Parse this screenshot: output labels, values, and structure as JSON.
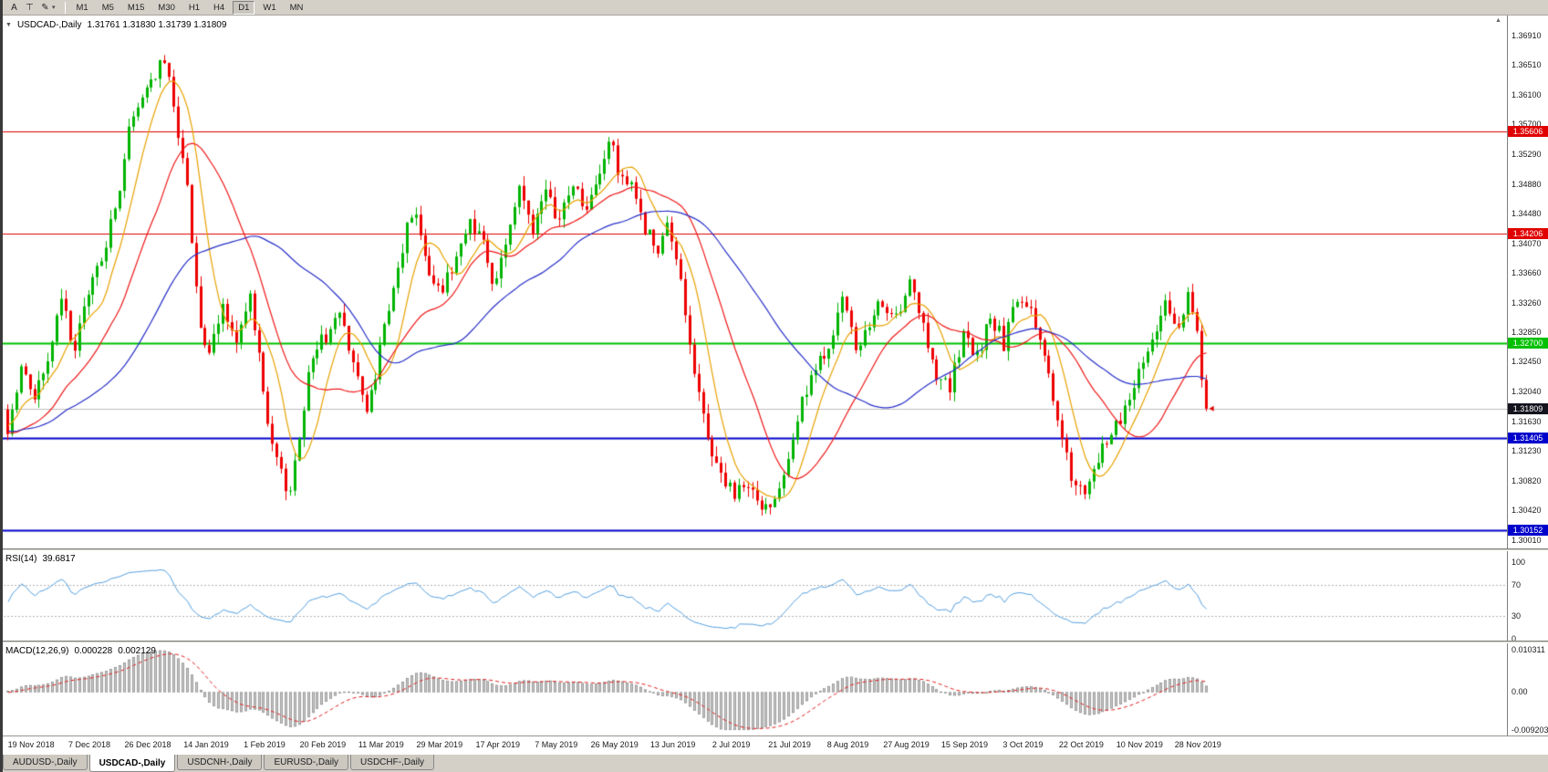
{
  "toolbar": {
    "icons": [
      {
        "name": "annotations",
        "glyph": "A"
      },
      {
        "name": "text-tool",
        "glyph": "⊤"
      },
      {
        "name": "draw-tools",
        "glyph": "✎"
      },
      {
        "name": "draw-tools-caret",
        "glyph": "▾"
      }
    ],
    "timeframes": [
      "M1",
      "M5",
      "M15",
      "M30",
      "H1",
      "H4",
      "D1",
      "W1",
      "MN"
    ],
    "active_timeframe": "D1"
  },
  "chart_header": {
    "collapse_icon": "▼",
    "title": "USDCAD-,Daily",
    "ohlc": "1.31761 1.31830 1.31739 1.31809"
  },
  "scroll_marker": "▲",
  "rsi_panel": {
    "label": "RSI(14)",
    "value": "39.6817",
    "axis_labels": [
      "100",
      "70",
      "30",
      "0"
    ]
  },
  "macd_panel": {
    "label": "MACD(12,26,9)",
    "value_main": "0.000228",
    "value_signal": "0.002129",
    "axis_labels": [
      "0.010311",
      "0.00",
      "-0.009203"
    ]
  },
  "tabs": {
    "items": [
      "AUDUSD-,Daily",
      "USDCAD-,Daily",
      "USDCNH-,Daily",
      "EURUSD-,Daily",
      "USDCHF-,Daily"
    ],
    "active_index": 1
  },
  "colors": {
    "candle_up": "#00b400",
    "candle_down": "#ee0000",
    "ma_fast": "#e8a200",
    "ma_medium": "#f01818",
    "ma_slow": "#2830c8",
    "rsi_line": "#55a0e0",
    "macd_histogram_fill": "#cacaca",
    "macd_histogram_edge": "#8a8a8a",
    "macd_signal": "#e02020",
    "current_price_line": "#c0c0c0",
    "current_price_badge": "#14141e"
  },
  "chart_data": {
    "type": "candlestick",
    "title": "USDCAD-,Daily",
    "ohlc_values": {
      "open": 1.31761,
      "high": 1.3183,
      "low": 1.31739,
      "close": 1.31809
    },
    "price_axis_ticks": [
      "1.36910",
      "1.36510",
      "1.36100",
      "1.35700",
      "1.35290",
      "1.34880",
      "1.34480",
      "1.34070",
      "1.33660",
      "1.33260",
      "1.32850",
      "1.32450",
      "1.32040",
      "1.31630",
      "1.31230",
      "1.30820",
      "1.30420",
      "1.30010"
    ],
    "date_labels": [
      "19 Nov 2018",
      "7 Dec 2018",
      "26 Dec 2018",
      "14 Jan 2019",
      "1 Feb 2019",
      "20 Feb 2019",
      "11 Mar 2019",
      "29 Mar 2019",
      "17 Apr 2019",
      "7 May 2019",
      "26 May 2019",
      "13 Jun 2019",
      "2 Jul 2019",
      "21 Jul 2019",
      "8 Aug 2019",
      "27 Aug 2019",
      "15 Sep 2019",
      "3 Oct 2019",
      "22 Oct 2019",
      "10 Nov 2019",
      "28 Nov 2019"
    ],
    "horizontal_levels": [
      {
        "price": 1.35606,
        "label": "1.35606",
        "color": "#e00000",
        "width": 1
      },
      {
        "price": 1.34206,
        "label": "1.34206",
        "color": "#e00000",
        "width": 1
      },
      {
        "price": 1.327,
        "label": "1.32700",
        "color": "#00c000",
        "width": 2
      },
      {
        "price": 1.31405,
        "label": "1.31405",
        "color": "#0000cc",
        "width": 2
      },
      {
        "price": 1.30152,
        "label": "1.30152",
        "color": "#0000cc",
        "width": 2
      }
    ],
    "current_price": {
      "value": 1.31809,
      "label": "1.31809"
    },
    "candles": {
      "count": 268,
      "close_anchors": [
        [
          0,
          1.315
        ],
        [
          3,
          1.3235
        ],
        [
          6,
          1.32
        ],
        [
          9,
          1.3245
        ],
        [
          12,
          1.333
        ],
        [
          15,
          1.326
        ],
        [
          18,
          1.334
        ],
        [
          21,
          1.339
        ],
        [
          24,
          1.345
        ],
        [
          27,
          1.356
        ],
        [
          30,
          1.361
        ],
        [
          33,
          1.364
        ],
        [
          35,
          1.3655
        ],
        [
          37,
          1.36
        ],
        [
          40,
          1.348
        ],
        [
          43,
          1.329
        ],
        [
          45,
          1.325
        ],
        [
          48,
          1.332
        ],
        [
          51,
          1.327
        ],
        [
          54,
          1.333
        ],
        [
          56,
          1.325
        ],
        [
          58,
          1.315
        ],
        [
          61,
          1.309
        ],
        [
          63,
          1.3065
        ],
        [
          65,
          1.315
        ],
        [
          68,
          1.326
        ],
        [
          71,
          1.328
        ],
        [
          74,
          1.331
        ],
        [
          77,
          1.325
        ],
        [
          80,
          1.317
        ],
        [
          83,
          1.326
        ],
        [
          86,
          1.334
        ],
        [
          89,
          1.343
        ],
        [
          91,
          1.345
        ],
        [
          94,
          1.337
        ],
        [
          97,
          1.334
        ],
        [
          100,
          1.339
        ],
        [
          103,
          1.344
        ],
        [
          106,
          1.341
        ],
        [
          108,
          1.335
        ],
        [
          111,
          1.341
        ],
        [
          114,
          1.348
        ],
        [
          117,
          1.343
        ],
        [
          120,
          1.347
        ],
        [
          123,
          1.344
        ],
        [
          126,
          1.349
        ],
        [
          129,
          1.345
        ],
        [
          132,
          1.35
        ],
        [
          134,
          1.355
        ],
        [
          136,
          1.351
        ],
        [
          139,
          1.348
        ],
        [
          142,
          1.343
        ],
        [
          145,
          1.339
        ],
        [
          147,
          1.343
        ],
        [
          150,
          1.336
        ],
        [
          153,
          1.323
        ],
        [
          156,
          1.314
        ],
        [
          159,
          1.309
        ],
        [
          162,
          1.306
        ],
        [
          165,
          1.308
        ],
        [
          168,
          1.304
        ],
        [
          171,
          1.306
        ],
        [
          174,
          1.312
        ],
        [
          177,
          1.319
        ],
        [
          180,
          1.323
        ],
        [
          183,
          1.327
        ],
        [
          186,
          1.333
        ],
        [
          189,
          1.326
        ],
        [
          192,
          1.329
        ],
        [
          195,
          1.333
        ],
        [
          198,
          1.33
        ],
        [
          201,
          1.335
        ],
        [
          204,
          1.329
        ],
        [
          207,
          1.323
        ],
        [
          210,
          1.321
        ],
        [
          213,
          1.328
        ],
        [
          216,
          1.325
        ],
        [
          219,
          1.331
        ],
        [
          222,
          1.327
        ],
        [
          225,
          1.333
        ],
        [
          228,
          1.331
        ],
        [
          231,
          1.326
        ],
        [
          234,
          1.316
        ],
        [
          237,
          1.309
        ],
        [
          240,
          1.3055
        ],
        [
          243,
          1.311
        ],
        [
          246,
          1.315
        ],
        [
          249,
          1.318
        ],
        [
          252,
          1.323
        ],
        [
          255,
          1.328
        ],
        [
          258,
          1.332
        ],
        [
          261,
          1.33
        ],
        [
          263,
          1.333
        ],
        [
          265,
          1.328
        ],
        [
          266,
          1.323
        ],
        [
          267,
          1.31809
        ]
      ]
    },
    "moving_averages": [
      {
        "name": "fast",
        "period": 8,
        "color": "#e8a200"
      },
      {
        "name": "medium",
        "period": 21,
        "color": "#f01818"
      },
      {
        "name": "slow",
        "period": 45,
        "color": "#2830c8"
      }
    ],
    "indicators": {
      "rsi": {
        "period": 14,
        "current": 39.6817,
        "levels": [
          70,
          30
        ],
        "range": [
          0,
          100
        ]
      },
      "macd": {
        "fast": 12,
        "slow": 26,
        "signal": 9,
        "current_main": 0.000228,
        "current_signal": 0.002129,
        "scale_max": 0.010311,
        "scale_min": -0.009203
      }
    }
  }
}
